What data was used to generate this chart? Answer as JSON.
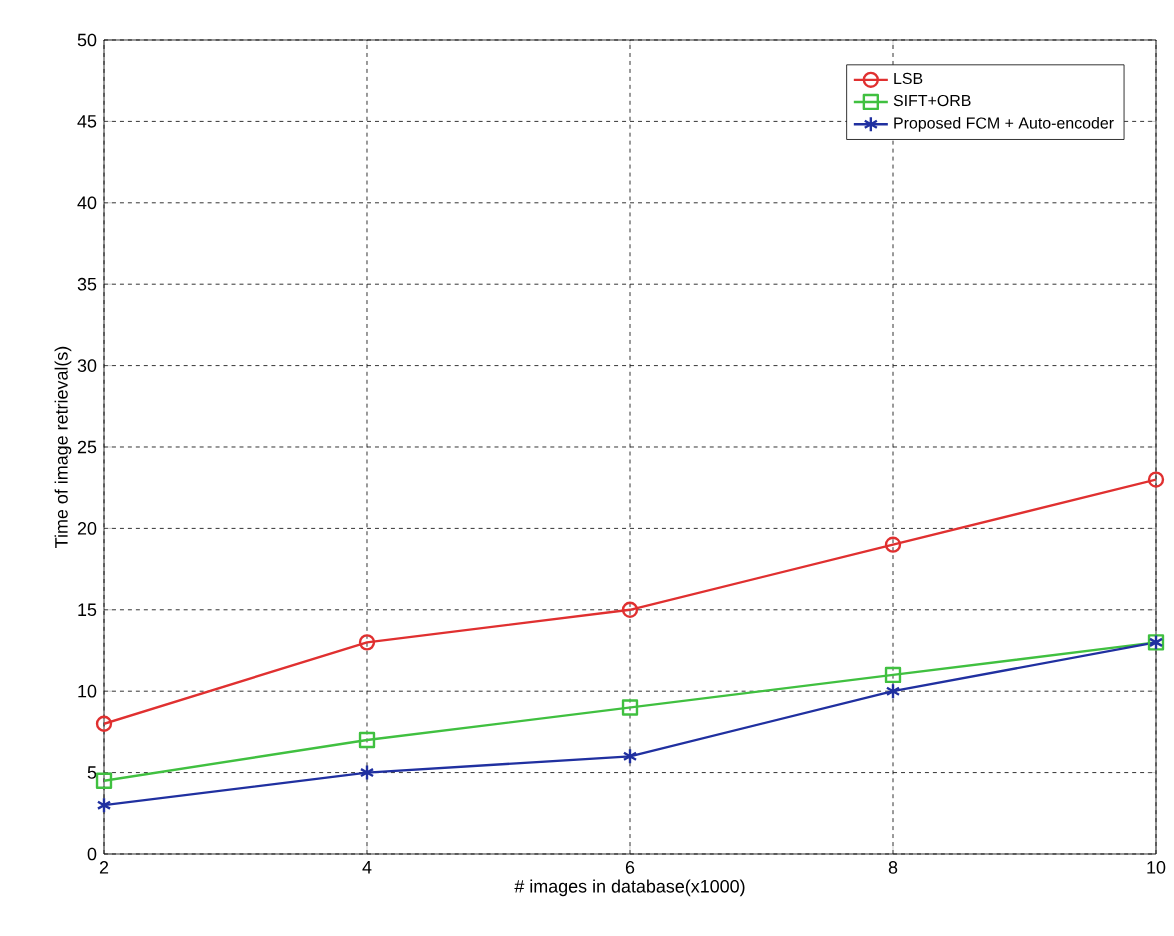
{
  "chart_data": {
    "type": "line",
    "xlabel": "# images in database(x1000)",
    "ylabel": "Time of image retrieval(s)",
    "x": [
      2,
      4,
      6,
      8,
      10
    ],
    "series": [
      {
        "name": "LSB",
        "color": "#e03030",
        "marker": "circle",
        "values": [
          8,
          13,
          15,
          19,
          23
        ]
      },
      {
        "name": "SIFT+ORB",
        "color": "#40c040",
        "marker": "square",
        "values": [
          4.5,
          7,
          9,
          11,
          13
        ]
      },
      {
        "name": "Proposed FCM + Auto-encoder",
        "color": "#2030a0",
        "marker": "cross",
        "values": [
          3,
          5,
          6,
          10,
          13
        ]
      }
    ],
    "xlim": [
      2,
      10
    ],
    "ylim": [
      0,
      50
    ],
    "xticks": [
      2,
      4,
      6,
      8,
      10
    ],
    "yticks": [
      0,
      5,
      10,
      15,
      20,
      25,
      30,
      35,
      40,
      45,
      50
    ],
    "grid": true,
    "legend": "top right",
    "line_style": "solid"
  }
}
